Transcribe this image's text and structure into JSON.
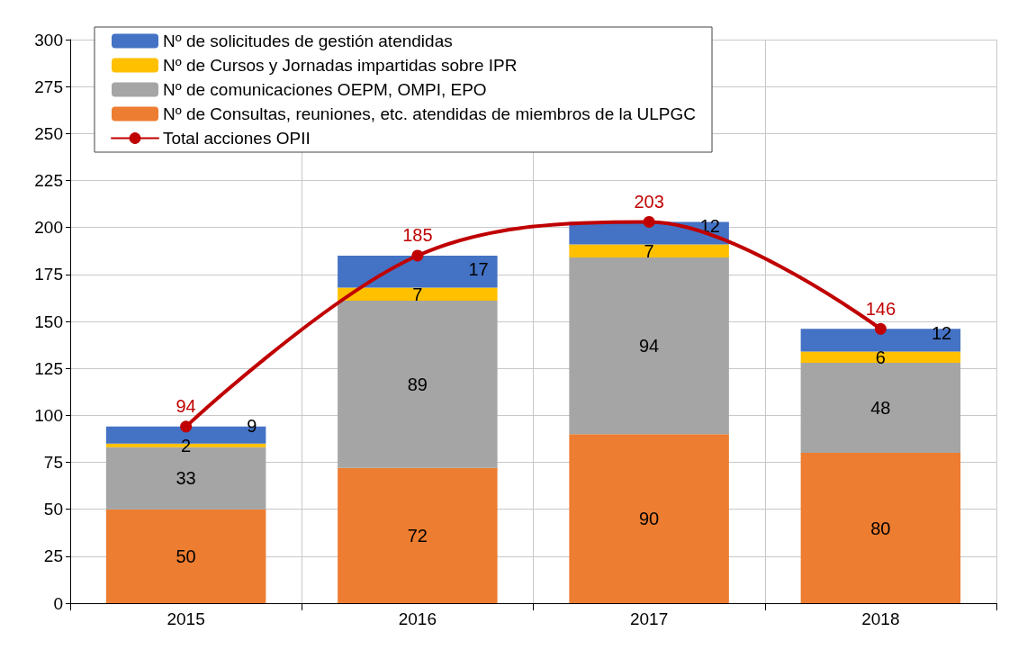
{
  "chart_data": {
    "type": "bar",
    "stacked": true,
    "categories": [
      "2015",
      "2016",
      "2017",
      "2018"
    ],
    "series": [
      {
        "name": "Nº de Consultas, reuniones, etc. atendidas de miembros de la ULPGC",
        "color": "#ed7d31",
        "values": [
          50,
          72,
          90,
          80
        ]
      },
      {
        "name": "Nº de comunicaciones OEPM, OMPI, EPO",
        "color": "#a5a5a5",
        "values": [
          33,
          89,
          94,
          48
        ]
      },
      {
        "name": "Nº de Cursos y Jornadas impartidas sobre IPR",
        "color": "#ffc000",
        "values": [
          2,
          7,
          7,
          6
        ]
      },
      {
        "name": "Nº de solicitudes de gestión atendidas",
        "color": "#4472c4",
        "values": [
          9,
          17,
          12,
          12
        ]
      },
      {
        "name": "Total acciones OPII",
        "type": "line",
        "color": "#c00000",
        "values": [
          94,
          185,
          203,
          146
        ]
      }
    ],
    "ylim": [
      0,
      300
    ],
    "yticks": [
      0,
      25,
      50,
      75,
      100,
      125,
      150,
      175,
      200,
      225,
      250,
      275,
      300
    ],
    "grid": true,
    "legend": "top left",
    "data_labels": true,
    "marker": "circle",
    "line_style": "solid"
  }
}
